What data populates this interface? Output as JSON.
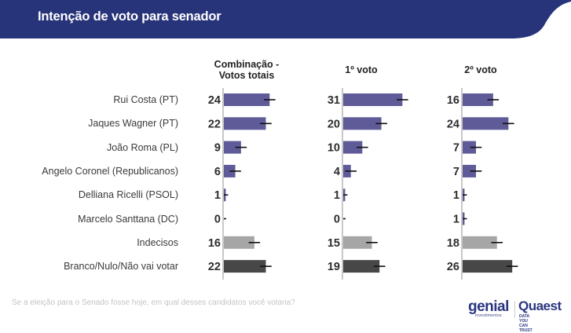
{
  "header": {
    "title": "Intenção de voto para senador",
    "color": "#27347A"
  },
  "chart_data": {
    "type": "bar",
    "orientation": "horizontal",
    "title": "Intenção de voto para senador",
    "categories": [
      "Rui Costa (PT)",
      "Jaques Wagner (PT)",
      "João Roma (PL)",
      "Angelo Coronel (Republicanos)",
      "Delliana Ricelli (PSOL)",
      "Marcelo Santtana (DC)",
      "Indecisos",
      "Branco/Nulo/Não vai votar"
    ],
    "category_colors": [
      "#5E5B98",
      "#5E5B98",
      "#5E5B98",
      "#5E5B98",
      "#5E5B98",
      "#5E5B98",
      "#A6A6A6",
      "#474747"
    ],
    "series": [
      {
        "name": "Combinação - Votos totais",
        "title_lines": [
          "Combinação -",
          "Votos totais"
        ],
        "values": [
          24,
          22,
          9,
          6,
          1,
          0,
          16,
          22
        ]
      },
      {
        "name": "1º voto",
        "title_lines": [
          "1º voto"
        ],
        "values": [
          31,
          20,
          10,
          4,
          1,
          0,
          15,
          19
        ]
      },
      {
        "name": "2º voto",
        "title_lines": [
          "2º voto"
        ],
        "values": [
          16,
          24,
          7,
          7,
          1,
          1,
          18,
          26
        ]
      }
    ],
    "error_bars": "shown (approx. ±3 units)",
    "xlim": [
      0,
      35
    ],
    "grid": false,
    "legend": "none"
  },
  "footnote": "Se a eleição para o Senado fosse hoje, em qual desses candidatos você votaria?",
  "logos": {
    "genial": "genial",
    "genial_sub": "investimentos",
    "quaest": "Quaest",
    "quaest_sub": "DATA YOU CAN TRUST"
  }
}
